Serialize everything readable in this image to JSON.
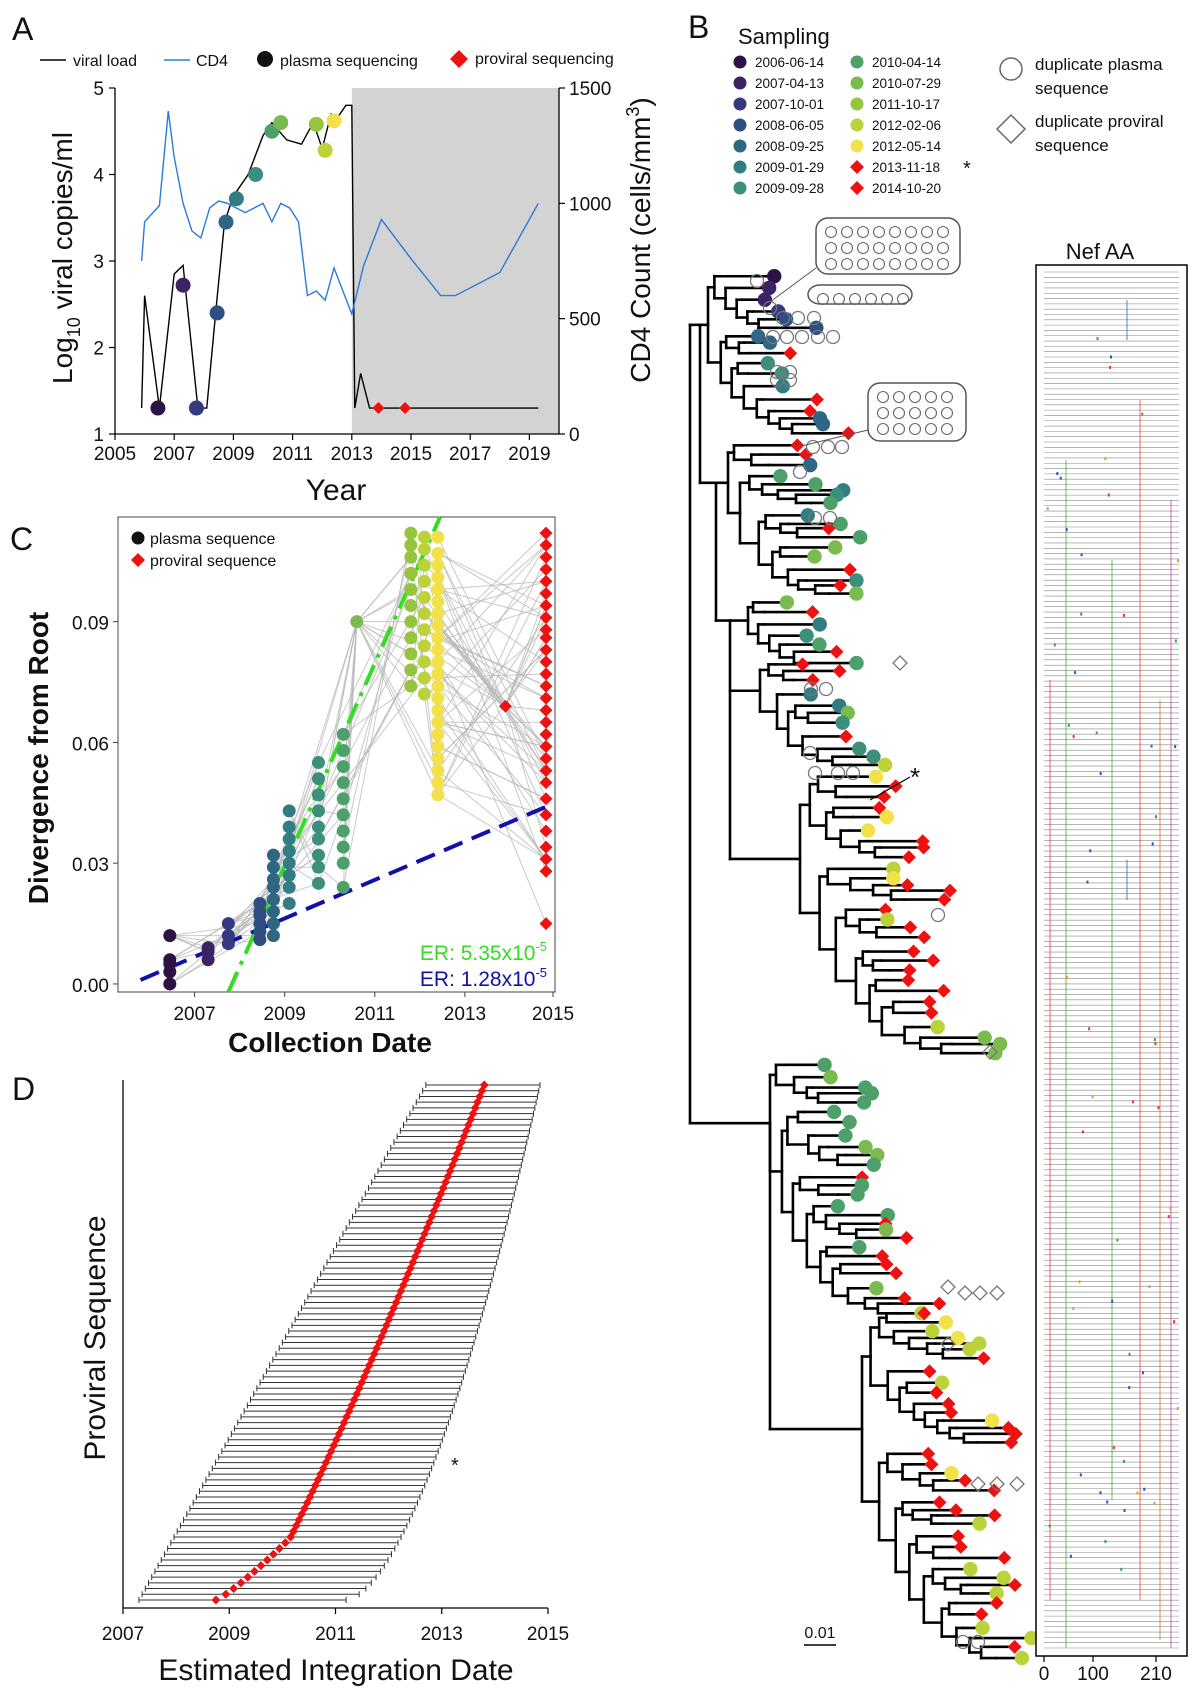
{
  "panel_letters": {
    "a": "A",
    "b": "B",
    "c": "C",
    "d": "D"
  },
  "panel_a": {
    "legend": {
      "viral_load": "viral load",
      "cd4": "CD4",
      "plasma": "plasma sequencing",
      "proviral": "proviral sequencing"
    },
    "xlabel": "Year",
    "ylabel_left": "Log10 viral copies/ml",
    "ylabel_left_base": "Log",
    "ylabel_left_sub": "10",
    "ylabel_left_rest": " viral copies/ml",
    "ylabel_right": "CD4 Count (cells/mm3)",
    "ylabel_right_main": "CD4 Count (cells/mm",
    "ylabel_right_sup": "3",
    "ylabel_right_end": ")",
    "x_ticks": [
      "2005",
      "2007",
      "2009",
      "2011",
      "2013",
      "2015",
      "2017",
      "2019"
    ],
    "y_left_ticks": [
      "1",
      "2",
      "3",
      "4",
      "5"
    ],
    "y_right_ticks": [
      "0",
      "500",
      "1000",
      "1500"
    ]
  },
  "panel_b": {
    "legend_title": "Sampling",
    "legend_items": [
      {
        "date": "2006-06-14",
        "color": "#2d1245",
        "shape": "circle"
      },
      {
        "date": "2007-04-13",
        "color": "#3b2364",
        "shape": "circle"
      },
      {
        "date": "2007-10-01",
        "color": "#35397e",
        "shape": "circle"
      },
      {
        "date": "2008-06-05",
        "color": "#2f4f82",
        "shape": "circle"
      },
      {
        "date": "2008-09-25",
        "color": "#2e6683",
        "shape": "circle"
      },
      {
        "date": "2009-01-29",
        "color": "#327d84",
        "shape": "circle"
      },
      {
        "date": "2009-09-28",
        "color": "#3b8f7b",
        "shape": "circle"
      },
      {
        "date": "2010-04-14",
        "color": "#4ea06a",
        "shape": "circle"
      },
      {
        "date": "2010-07-29",
        "color": "#7bba4f",
        "shape": "circle"
      },
      {
        "date": "2011-10-17",
        "color": "#95c43f",
        "shape": "circle"
      },
      {
        "date": "2012-02-06",
        "color": "#bcd23a",
        "shape": "circle"
      },
      {
        "date": "2012-05-14",
        "color": "#f2e14b",
        "shape": "circle"
      },
      {
        "date": "2013-11-18",
        "color": "#ee1111",
        "shape": "diamond"
      },
      {
        "date": "2014-10-20",
        "color": "#ee1111",
        "shape": "diamond"
      }
    ],
    "asterisk": "*",
    "dup_plasma": [
      "duplicate plasma",
      "sequence"
    ],
    "dup_proviral": [
      "duplicate proviral",
      "sequence"
    ],
    "nef_title": "Nef AA",
    "nef_ticks": [
      "0",
      "100",
      "210"
    ],
    "scale_bar": "0.01"
  },
  "panel_c": {
    "legend": {
      "plasma": "plasma sequence",
      "proviral": "proviral sequence"
    },
    "xlabel": "Collection Date",
    "ylabel": "Divergence from Root",
    "x_ticks": [
      "2007",
      "2009",
      "2011",
      "2013",
      "2015"
    ],
    "y_ticks": [
      "0.00",
      "0.03",
      "0.06",
      "0.09"
    ],
    "er_green_base": "ER: 5.35x10",
    "er_green_exp": "-5",
    "er_blue_base": "ER: 1.28x10",
    "er_blue_exp": "-5",
    "colors": {
      "green": "#33dd22",
      "blue": "#1111aa"
    }
  },
  "panel_d": {
    "xlabel": "Estimated Integration Date",
    "ylabel": "Proviral Sequence",
    "x_ticks": [
      "2007",
      "2009",
      "2011",
      "2013",
      "2015"
    ],
    "asterisk": "*"
  },
  "chart_data": [
    {
      "id": "panel-a",
      "type": "line",
      "xlabel": "Year",
      "ylabel": "Log10 viral copies/ml",
      "y2label": "CD4 Count (cells/mm3)",
      "xlim": [
        2005,
        2020
      ],
      "ylim": [
        1,
        5
      ],
      "y2lim": [
        0,
        1500
      ],
      "shaded_region": [
        2013,
        2020
      ],
      "series": [
        {
          "name": "viral load",
          "color": "#000000",
          "axis": "left",
          "x": [
            2005.9,
            2006.0,
            2006.5,
            2007.0,
            2007.3,
            2007.8,
            2008.1,
            2008.4,
            2008.7,
            2009.0,
            2009.5,
            2010.0,
            2010.3,
            2010.8,
            2011.3,
            2011.7,
            2012.0,
            2012.3,
            2012.5,
            2012.8,
            2013.0,
            2013.1,
            2013.3,
            2013.6,
            2014.0,
            2015.0,
            2016.0,
            2017.0,
            2018.0,
            2019.3
          ],
          "y": [
            1.3,
            2.6,
            1.3,
            2.85,
            2.95,
            1.3,
            1.3,
            2.4,
            3.45,
            3.75,
            4.0,
            4.45,
            4.6,
            4.4,
            4.35,
            4.6,
            4.3,
            4.7,
            4.65,
            4.8,
            4.8,
            1.3,
            1.7,
            1.3,
            1.3,
            1.3,
            1.3,
            1.3,
            1.3,
            1.3
          ]
        },
        {
          "name": "CD4",
          "color": "#2b7bd9",
          "axis": "right",
          "x": [
            2005.9,
            2006.0,
            2006.5,
            2006.8,
            2007.0,
            2007.3,
            2007.6,
            2007.9,
            2008.2,
            2008.5,
            2008.8,
            2009.1,
            2009.4,
            2009.7,
            2010.0,
            2010.3,
            2010.6,
            2010.9,
            2011.2,
            2011.5,
            2011.8,
            2012.1,
            2012.4,
            2012.7,
            2013.0,
            2013.4,
            2014.0,
            2015.0,
            2016.0,
            2016.5,
            2018.0,
            2019.3
          ],
          "y": [
            750,
            920,
            990,
            1400,
            1200,
            1000,
            880,
            850,
            980,
            1010,
            1000,
            980,
            960,
            980,
            1000,
            920,
            1000,
            980,
            920,
            600,
            620,
            580,
            720,
            620,
            520,
            730,
            930,
            760,
            600,
            600,
            700,
            1000
          ]
        }
      ],
      "markers": [
        {
          "kind": "plasma",
          "x": 2006.45,
          "y": 1.3,
          "color": "#2d1245"
        },
        {
          "kind": "plasma",
          "x": 2007.3,
          "y": 2.72,
          "color": "#3b2364"
        },
        {
          "kind": "plasma",
          "x": 2007.75,
          "y": 1.3,
          "color": "#35397e"
        },
        {
          "kind": "plasma",
          "x": 2008.45,
          "y": 2.4,
          "color": "#2f4f82"
        },
        {
          "kind": "plasma",
          "x": 2008.75,
          "y": 3.45,
          "color": "#2e6683"
        },
        {
          "kind": "plasma",
          "x": 2009.1,
          "y": 3.72,
          "color": "#327d84"
        },
        {
          "kind": "plasma",
          "x": 2009.75,
          "y": 4.0,
          "color": "#3b8f7b"
        },
        {
          "kind": "plasma",
          "x": 2010.3,
          "y": 4.5,
          "color": "#4ea06a"
        },
        {
          "kind": "plasma",
          "x": 2010.6,
          "y": 4.6,
          "color": "#7bba4f"
        },
        {
          "kind": "plasma",
          "x": 2011.8,
          "y": 4.58,
          "color": "#95c43f"
        },
        {
          "kind": "plasma",
          "x": 2012.1,
          "y": 4.28,
          "color": "#bcd23a"
        },
        {
          "kind": "plasma",
          "x": 2012.4,
          "y": 4.62,
          "color": "#f2e14b"
        },
        {
          "kind": "proviral",
          "x": 2013.9,
          "y": 1.3,
          "color": "#ee1111"
        },
        {
          "kind": "proviral",
          "x": 2014.8,
          "y": 1.3,
          "color": "#ee1111"
        }
      ]
    },
    {
      "id": "panel-c",
      "type": "scatter",
      "xlabel": "Collection Date",
      "ylabel": "Divergence from Root",
      "xlim": [
        2005.3,
        2015.0
      ],
      "ylim": [
        -0.002,
        0.116
      ],
      "grid": false,
      "groups": [
        {
          "x": 2006.45,
          "color": "#2d1245",
          "y": [
            0.0,
            0.003,
            0.005,
            0.006,
            0.012
          ]
        },
        {
          "x": 2007.3,
          "color": "#3b2364",
          "y": [
            0.006,
            0.008,
            0.009
          ]
        },
        {
          "x": 2007.75,
          "color": "#35397e",
          "y": [
            0.01,
            0.012,
            0.015
          ]
        },
        {
          "x": 2008.45,
          "color": "#2f4f82",
          "y": [
            0.011,
            0.013,
            0.015,
            0.017,
            0.018,
            0.02
          ]
        },
        {
          "x": 2008.75,
          "color": "#2e6683",
          "y": [
            0.012,
            0.015,
            0.018,
            0.021,
            0.024,
            0.026,
            0.029,
            0.032
          ]
        },
        {
          "x": 2009.1,
          "color": "#327d84",
          "y": [
            0.02,
            0.024,
            0.027,
            0.03,
            0.033,
            0.036,
            0.039,
            0.043
          ]
        },
        {
          "x": 2009.75,
          "color": "#3b8f7b",
          "y": [
            0.025,
            0.029,
            0.032,
            0.036,
            0.039,
            0.043,
            0.047,
            0.051,
            0.055
          ]
        },
        {
          "x": 2010.3,
          "color": "#4ea06a",
          "y": [
            0.024,
            0.03,
            0.034,
            0.038,
            0.042,
            0.046,
            0.05,
            0.054,
            0.058,
            0.062
          ]
        },
        {
          "x": 2010.6,
          "color": "#7bba4f",
          "y": [
            0.09
          ]
        },
        {
          "x": 2011.8,
          "color": "#95c43f",
          "y": [
            0.074,
            0.078,
            0.082,
            0.086,
            0.09,
            0.094,
            0.098,
            0.102,
            0.106,
            0.109,
            0.112
          ]
        },
        {
          "x": 2012.1,
          "color": "#bcd23a",
          "y": [
            0.072,
            0.076,
            0.08,
            0.084,
            0.088,
            0.092,
            0.096,
            0.1,
            0.104,
            0.108,
            0.111
          ]
        },
        {
          "x": 2012.4,
          "color": "#f2e14b",
          "y": [
            0.047,
            0.05,
            0.053,
            0.056,
            0.059,
            0.062,
            0.065,
            0.068,
            0.071,
            0.074,
            0.077,
            0.08,
            0.083,
            0.086,
            0.089,
            0.092,
            0.095,
            0.098,
            0.101,
            0.104,
            0.107,
            0.111
          ]
        },
        {
          "x": 2013.9,
          "color": "#ee1111",
          "shape": "diamond",
          "y": [
            0.069
          ]
        },
        {
          "x": 2014.8,
          "color": "#ee1111",
          "shape": "diamond",
          "y": [
            0.015,
            0.028,
            0.031,
            0.034,
            0.038,
            0.042,
            0.046,
            0.05,
            0.053,
            0.056,
            0.059,
            0.062,
            0.065,
            0.068,
            0.071,
            0.074,
            0.077,
            0.08,
            0.083,
            0.086,
            0.088,
            0.091,
            0.094,
            0.097,
            0.1,
            0.103,
            0.106,
            0.109,
            0.112
          ]
        }
      ],
      "fit_lines": [
        {
          "label": "ER: 5.35x10-5",
          "color": "#33dd22",
          "x": [
            2007.75,
            2012.45
          ],
          "y": [
            -0.002,
            0.116
          ]
        },
        {
          "label": "ER: 1.28x10-5",
          "color": "#1111aa",
          "x": [
            2005.8,
            2014.8
          ],
          "y": [
            0.001,
            0.044
          ]
        }
      ]
    },
    {
      "id": "panel-d",
      "type": "scatter",
      "xlabel": "Estimated Integration Date",
      "ylabel": "Proviral Sequence",
      "xlim": [
        2007.0,
        2015.0
      ],
      "n_sequences": 91,
      "estimate_first": 2008.75,
      "estimate_last": 2013.8,
      "interval_first": [
        2007.3,
        2011.2
      ],
      "interval_last": [
        2012.7,
        2014.85
      ]
    }
  ]
}
